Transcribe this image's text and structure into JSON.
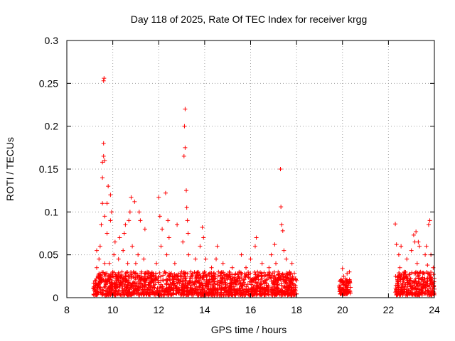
{
  "chart_data": {
    "type": "scatter",
    "title": "Day 118 of 2025, Rate Of TEC Index for receiver krgg",
    "xlabel": "GPS time / hours",
    "ylabel": "ROTI / TECUs",
    "xlim": [
      8,
      24
    ],
    "ylim": [
      0,
      0.3
    ],
    "xticks": [
      8,
      10,
      12,
      14,
      16,
      18,
      20,
      22,
      24
    ],
    "xtick_labels": [
      "8",
      "10",
      "12",
      "14",
      "16",
      "18",
      "20",
      "22",
      "24"
    ],
    "yticks": [
      0,
      0.05,
      0.1,
      0.15,
      0.2,
      0.25,
      0.3
    ],
    "ytick_labels": [
      "0",
      "0.05",
      "0.1",
      "0.15",
      "0.2",
      "0.25",
      "0.3"
    ],
    "grid": true,
    "marker": "plus",
    "color": "#ff0000",
    "series": [
      {
        "name": "ROTI",
        "points": [
          [
            9.2,
            0.01
          ],
          [
            9.25,
            0.02
          ],
          [
            9.3,
            0.035
          ],
          [
            9.3,
            0.055
          ],
          [
            9.35,
            0.012
          ],
          [
            9.4,
            0.028
          ],
          [
            9.4,
            0.045
          ],
          [
            9.45,
            0.008
          ],
          [
            9.45,
            0.06
          ],
          [
            9.5,
            0.018
          ],
          [
            9.5,
            0.085
          ],
          [
            9.55,
            0.11
          ],
          [
            9.55,
            0.14
          ],
          [
            9.55,
            0.158
          ],
          [
            9.6,
            0.165
          ],
          [
            9.6,
            0.18
          ],
          [
            9.6,
            0.253
          ],
          [
            9.62,
            0.256
          ],
          [
            9.65,
            0.16
          ],
          [
            9.65,
            0.095
          ],
          [
            9.65,
            0.04
          ],
          [
            9.7,
            0.028
          ],
          [
            9.7,
            0.015
          ],
          [
            9.75,
            0.075
          ],
          [
            9.75,
            0.11
          ],
          [
            9.8,
            0.13
          ],
          [
            9.85,
            0.02
          ],
          [
            9.85,
            0.04
          ],
          [
            9.9,
            0.12
          ],
          [
            9.9,
            0.09
          ],
          [
            9.95,
            0.1
          ],
          [
            10.0,
            0.03
          ],
          [
            10.0,
            0.01
          ],
          [
            10.05,
            0.05
          ],
          [
            10.1,
            0.065
          ],
          [
            10.15,
            0.025
          ],
          [
            10.2,
            0.012
          ],
          [
            10.25,
            0.045
          ],
          [
            10.3,
            0.07
          ],
          [
            10.35,
            0.018
          ],
          [
            10.4,
            0.03
          ],
          [
            10.45,
            0.055
          ],
          [
            10.5,
            0.075
          ],
          [
            10.55,
            0.085
          ],
          [
            10.6,
            0.02
          ],
          [
            10.65,
            0.04
          ],
          [
            10.7,
            0.09
          ],
          [
            10.75,
            0.1
          ],
          [
            10.8,
            0.117
          ],
          [
            10.85,
            0.06
          ],
          [
            10.9,
            0.03
          ],
          [
            10.95,
            0.112
          ],
          [
            11.0,
            0.04
          ],
          [
            11.05,
            0.016
          ],
          [
            11.1,
            0.05
          ],
          [
            11.15,
            0.1
          ],
          [
            11.2,
            0.09
          ],
          [
            11.25,
            0.03
          ],
          [
            11.3,
            0.015
          ],
          [
            11.35,
            0.045
          ],
          [
            11.4,
            0.08
          ],
          [
            11.5,
            0.03
          ],
          [
            11.6,
            0.018
          ],
          [
            11.7,
            0.025
          ],
          [
            11.8,
            0.012
          ],
          [
            11.9,
            0.04
          ],
          [
            12.0,
            0.117
          ],
          [
            12.05,
            0.095
          ],
          [
            12.1,
            0.06
          ],
          [
            12.15,
            0.08
          ],
          [
            12.2,
            0.02
          ],
          [
            12.25,
            0.03
          ],
          [
            12.3,
            0.122
          ],
          [
            12.35,
            0.05
          ],
          [
            12.4,
            0.09
          ],
          [
            12.45,
            0.07
          ],
          [
            12.5,
            0.015
          ],
          [
            12.6,
            0.025
          ],
          [
            12.7,
            0.04
          ],
          [
            12.8,
            0.085
          ],
          [
            12.85,
            0.02
          ],
          [
            12.9,
            0.01
          ],
          [
            13.0,
            0.03
          ],
          [
            13.05,
            0.065
          ],
          [
            13.1,
            0.165
          ],
          [
            13.12,
            0.2
          ],
          [
            13.15,
            0.22
          ],
          [
            13.15,
            0.175
          ],
          [
            13.2,
            0.125
          ],
          [
            13.22,
            0.105
          ],
          [
            13.25,
            0.09
          ],
          [
            13.28,
            0.075
          ],
          [
            13.3,
            0.05
          ],
          [
            13.35,
            0.02
          ],
          [
            13.4,
            0.03
          ],
          [
            13.5,
            0.015
          ],
          [
            13.6,
            0.045
          ],
          [
            13.7,
            0.025
          ],
          [
            13.8,
            0.06
          ],
          [
            13.9,
            0.082
          ],
          [
            13.95,
            0.07
          ],
          [
            14.0,
            0.03
          ],
          [
            14.05,
            0.045
          ],
          [
            14.1,
            0.015
          ],
          [
            14.2,
            0.02
          ],
          [
            14.3,
            0.035
          ],
          [
            14.4,
            0.01
          ],
          [
            14.5,
            0.045
          ],
          [
            14.55,
            0.06
          ],
          [
            14.6,
            0.03
          ],
          [
            14.7,
            0.018
          ],
          [
            14.8,
            0.04
          ],
          [
            14.9,
            0.012
          ],
          [
            15.0,
            0.025
          ],
          [
            15.1,
            0.008
          ],
          [
            15.2,
            0.035
          ],
          [
            15.3,
            0.02
          ],
          [
            15.4,
            0.015
          ],
          [
            15.5,
            0.03
          ],
          [
            15.6,
            0.05
          ],
          [
            15.7,
            0.018
          ],
          [
            15.8,
            0.035
          ],
          [
            15.9,
            0.01
          ],
          [
            16.0,
            0.045
          ],
          [
            16.1,
            0.02
          ],
          [
            16.2,
            0.06
          ],
          [
            16.25,
            0.07
          ],
          [
            16.3,
            0.03
          ],
          [
            16.4,
            0.015
          ],
          [
            16.5,
            0.04
          ],
          [
            16.6,
            0.025
          ],
          [
            16.7,
            0.012
          ],
          [
            16.8,
            0.035
          ],
          [
            16.9,
            0.05
          ],
          [
            17.0,
            0.02
          ],
          [
            17.05,
            0.062
          ],
          [
            17.1,
            0.04
          ],
          [
            17.15,
            0.018
          ],
          [
            17.2,
            0.03
          ],
          [
            17.3,
            0.15
          ],
          [
            17.32,
            0.106
          ],
          [
            17.35,
            0.085
          ],
          [
            17.4,
            0.078
          ],
          [
            17.45,
            0.055
          ],
          [
            17.5,
            0.025
          ],
          [
            17.55,
            0.045
          ],
          [
            17.6,
            0.012
          ],
          [
            17.7,
            0.03
          ],
          [
            17.8,
            0.04
          ],
          [
            17.9,
            0.015
          ],
          [
            18.0,
            0.02
          ],
          [
            19.9,
            0.01
          ],
          [
            19.95,
            0.02
          ],
          [
            20.0,
            0.034
          ],
          [
            20.05,
            0.025
          ],
          [
            20.1,
            0.015
          ],
          [
            20.15,
            0.008
          ],
          [
            20.2,
            0.028
          ],
          [
            20.25,
            0.018
          ],
          [
            20.3,
            0.03
          ],
          [
            20.35,
            0.012
          ],
          [
            22.3,
            0.086
          ],
          [
            22.35,
            0.062
          ],
          [
            22.4,
            0.02
          ],
          [
            22.45,
            0.05
          ],
          [
            22.5,
            0.035
          ],
          [
            22.55,
            0.06
          ],
          [
            22.6,
            0.015
          ],
          [
            22.7,
            0.03
          ],
          [
            22.8,
            0.045
          ],
          [
            22.9,
            0.02
          ],
          [
            23.0,
            0.055
          ],
          [
            23.1,
            0.073
          ],
          [
            23.15,
            0.065
          ],
          [
            23.2,
            0.077
          ],
          [
            23.25,
            0.04
          ],
          [
            23.3,
            0.065
          ],
          [
            23.35,
            0.06
          ],
          [
            23.4,
            0.03
          ],
          [
            23.5,
            0.015
          ],
          [
            23.6,
            0.05
          ],
          [
            23.65,
            0.06
          ],
          [
            23.7,
            0.038
          ],
          [
            23.75,
            0.085
          ],
          [
            23.8,
            0.09
          ],
          [
            23.85,
            0.05
          ],
          [
            23.9,
            0.02
          ],
          [
            23.95,
            0.035
          ],
          [
            24.0,
            0.01
          ]
        ],
        "dense_bands": [
          {
            "x_start": 9.15,
            "x_end": 18.0,
            "y_base": 0.003,
            "y_top": 0.03
          },
          {
            "x_start": 19.85,
            "x_end": 20.35,
            "y_base": 0.004,
            "y_top": 0.022
          },
          {
            "x_start": 22.3,
            "x_end": 24.0,
            "y_base": 0.003,
            "y_top": 0.03
          }
        ]
      }
    ]
  }
}
